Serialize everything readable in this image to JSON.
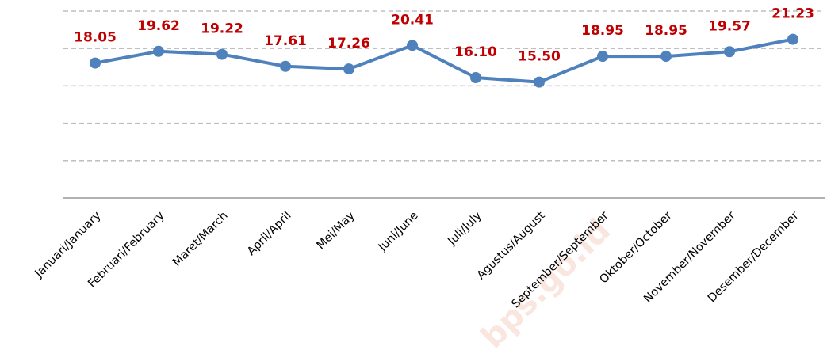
{
  "chart_data": {
    "type": "line",
    "categories": [
      "Januari/January",
      "Februari/February",
      "Maret/March",
      "April/April",
      "Mei/May",
      "Juni/June",
      "Juli/July",
      "Agustus/August",
      "September/September",
      "Oktober/October",
      "November/November",
      "Desember/December"
    ],
    "series": [
      {
        "color": "#4f81bd",
        "values": [
          18.05,
          19.62,
          19.22,
          17.61,
          17.26,
          20.41,
          16.1,
          15.5,
          18.95,
          18.95,
          19.57,
          21.23
        ],
        "value_labels": [
          "18.05",
          "19.62",
          "19.22",
          "17.61",
          "17.26",
          "20.41",
          "16.10",
          "15.50",
          "18.95",
          "18.95",
          "19.57",
          "21.23"
        ]
      }
    ],
    "ylim": [
      0,
      25
    ],
    "yticks": [
      0,
      5,
      10,
      15,
      20,
      25
    ],
    "grid": true,
    "watermark": "bps.go.id"
  }
}
